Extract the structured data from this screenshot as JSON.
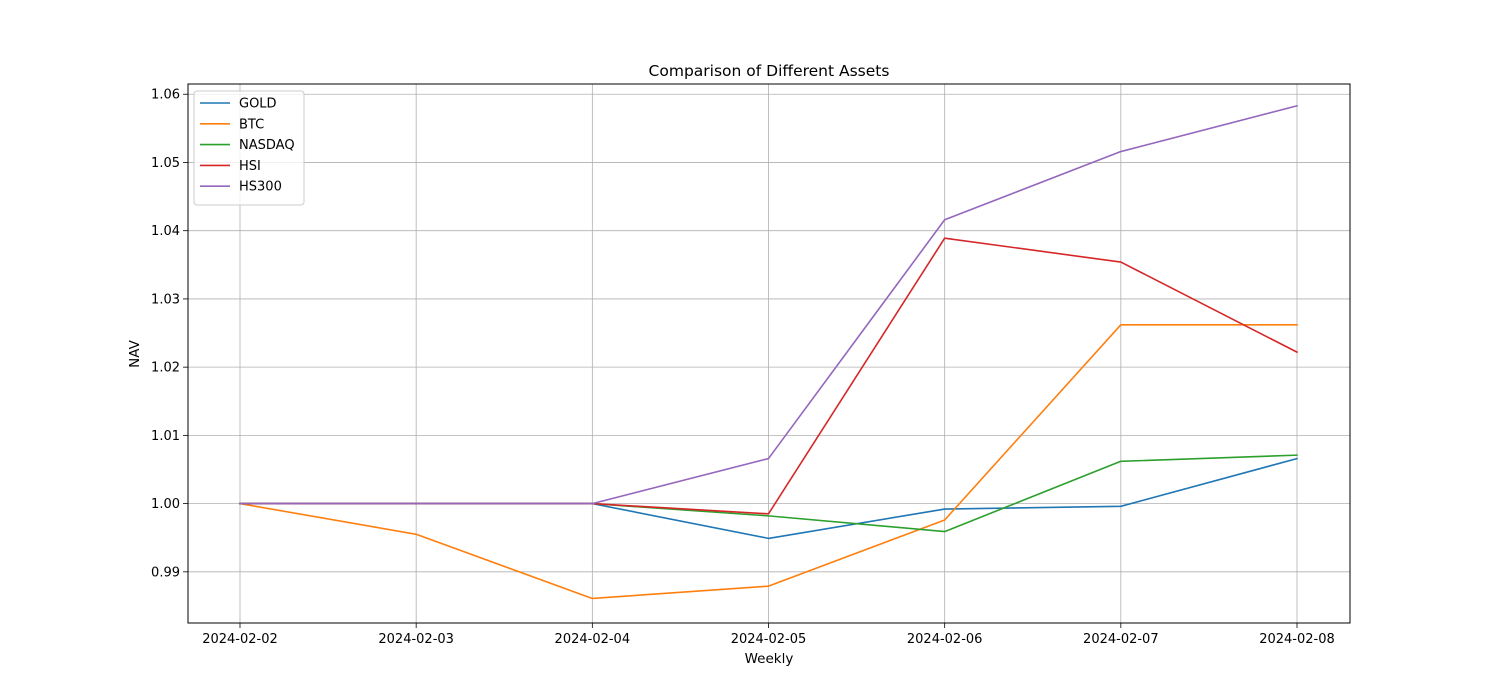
{
  "chart_data": {
    "type": "line",
    "title": "Comparison of Different Assets",
    "xlabel": "Weekly",
    "ylabel": "NAV",
    "x": [
      "2024-02-02",
      "2024-02-03",
      "2024-02-04",
      "2024-02-05",
      "2024-02-06",
      "2024-02-07",
      "2024-02-08"
    ],
    "ylim": [
      0.9825,
      1.0615
    ],
    "yticks": [
      0.99,
      1.0,
      1.01,
      1.02,
      1.03,
      1.04,
      1.05,
      1.06
    ],
    "ytick_labels": [
      "0.99",
      "1.00",
      "1.01",
      "1.02",
      "1.03",
      "1.04",
      "1.05",
      "1.06"
    ],
    "grid": true,
    "legend_position": "top-left",
    "series": [
      {
        "name": "GOLD",
        "color": "#1f77b4",
        "values": [
          1.0,
          1.0,
          1.0,
          0.9949,
          0.9992,
          0.9996,
          1.0066
        ]
      },
      {
        "name": "BTC",
        "color": "#ff7f0e",
        "values": [
          1.0,
          0.9955,
          0.9861,
          0.9879,
          0.9976,
          1.0262,
          1.0262
        ]
      },
      {
        "name": "NASDAQ",
        "color": "#2ca02c",
        "values": [
          1.0,
          1.0,
          1.0,
          0.9982,
          0.9959,
          1.0062,
          1.0071
        ]
      },
      {
        "name": "HSI",
        "color": "#d62728",
        "values": [
          1.0,
          1.0,
          1.0,
          0.9985,
          1.0389,
          1.0354,
          1.0222
        ]
      },
      {
        "name": "HS300",
        "color": "#9467bd",
        "values": [
          1.0,
          1.0,
          1.0,
          1.0066,
          1.0416,
          1.0516,
          1.0583
        ]
      }
    ]
  }
}
